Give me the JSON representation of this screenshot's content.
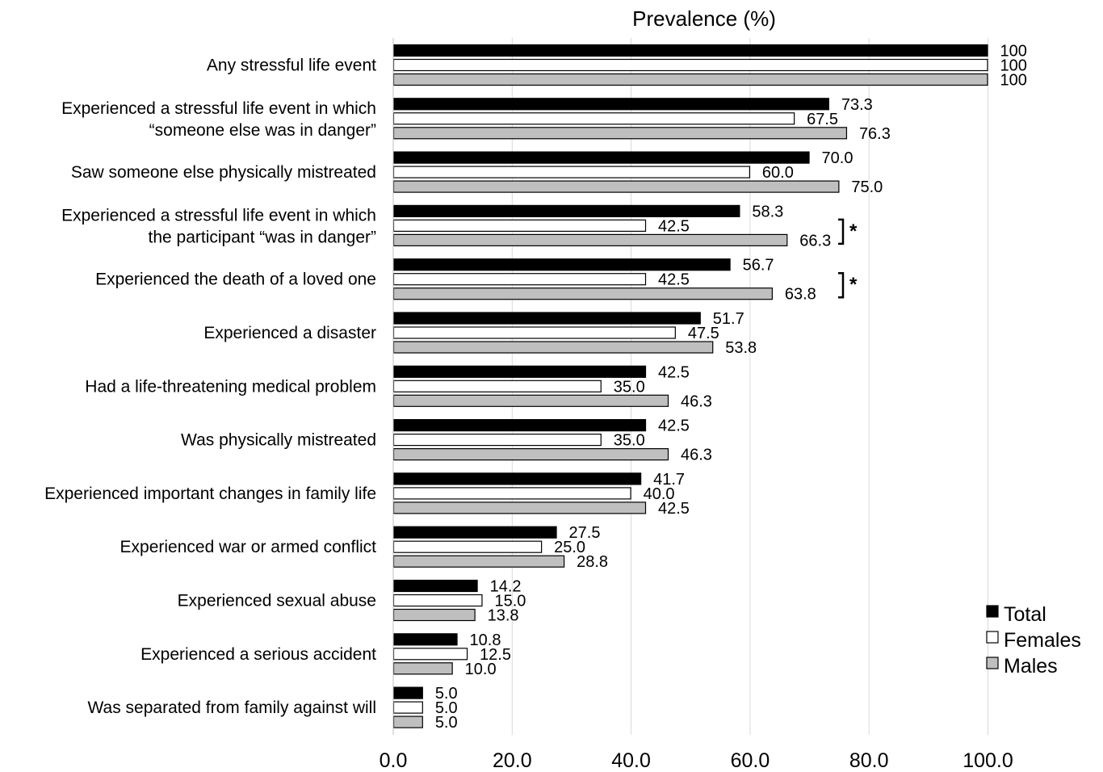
{
  "chart_data": {
    "type": "bar",
    "orientation": "horizontal",
    "title": "Prevalence (%)",
    "xlabel": "",
    "ylabel": "",
    "xlim": [
      0,
      100
    ],
    "xticks": [
      "0.0",
      "20.0",
      "40.0",
      "60.0",
      "80.0",
      "100.0"
    ],
    "grid": "vertical",
    "legend_position": "bottom-right",
    "categories": [
      [
        "Any stressful life event"
      ],
      [
        "Experienced a stressful life event in which",
        "“someone else was in danger”"
      ],
      [
        "Saw someone else physically mistreated"
      ],
      [
        "Experienced a stressful life event in which",
        "the participant “was in danger”"
      ],
      [
        "Experienced the death of a loved one"
      ],
      [
        "Experienced a disaster"
      ],
      [
        "Had a life-threatening medical problem"
      ],
      [
        "Was physically mistreated"
      ],
      [
        "Experienced important changes in family life"
      ],
      [
        "Experienced war or armed conflict"
      ],
      [
        "Experienced sexual abuse"
      ],
      [
        "Experienced a serious accident"
      ],
      [
        "Was separated from family against will"
      ]
    ],
    "series": [
      {
        "name": "Total",
        "color": "#000000",
        "values": [
          100,
          73.3,
          70.0,
          58.3,
          56.7,
          51.7,
          42.5,
          42.5,
          41.7,
          27.5,
          14.2,
          10.8,
          5.0
        ],
        "labels": [
          "100",
          "73.3",
          "70.0",
          "58.3",
          "56.7",
          "51.7",
          "42.5",
          "42.5",
          "41.7",
          "27.5",
          "14.2",
          "10.8",
          "5.0"
        ]
      },
      {
        "name": "Females",
        "color": "#ffffff",
        "values": [
          100,
          67.5,
          60.0,
          42.5,
          42.5,
          47.5,
          35.0,
          35.0,
          40.0,
          25.0,
          15.0,
          12.5,
          5.0
        ],
        "labels": [
          "100",
          "67.5",
          "60.0",
          "42.5",
          "42.5",
          "47.5",
          "35.0",
          "35.0",
          "40.0",
          "25.0",
          "15.0",
          "12.5",
          "5.0"
        ]
      },
      {
        "name": "Males",
        "color": "#bfbfbf",
        "values": [
          100,
          76.3,
          75.0,
          66.3,
          63.8,
          53.8,
          46.3,
          46.3,
          42.5,
          28.8,
          13.8,
          10.0,
          5.0
        ],
        "labels": [
          "100",
          "76.3",
          "75.0",
          "66.3",
          "63.8",
          "53.8",
          "46.3",
          "46.3",
          "42.5",
          "28.8",
          "13.8",
          "10.0",
          "5.0"
        ]
      }
    ],
    "annotations": [
      {
        "category_index": 3,
        "text": "*"
      },
      {
        "category_index": 4,
        "text": "*"
      }
    ]
  }
}
